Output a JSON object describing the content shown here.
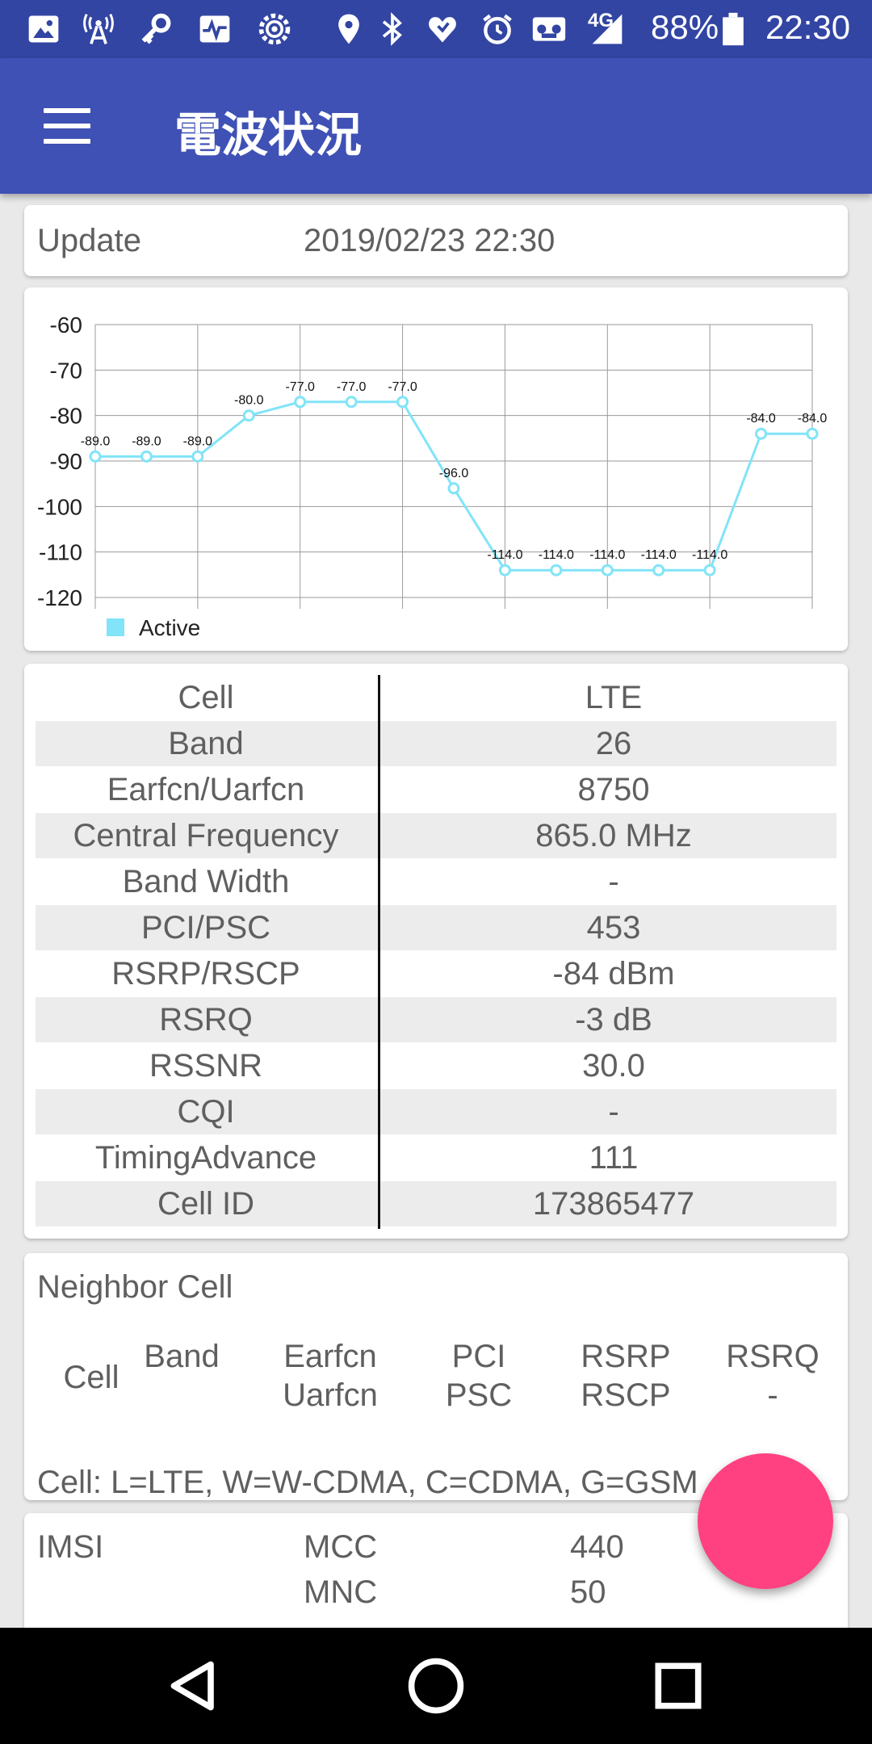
{
  "status_bar": {
    "network": "4G",
    "battery": "88%",
    "time": "22:30",
    "icons": [
      "image-icon",
      "antenna-icon",
      "vpn-key-icon",
      "pulse-icon",
      "settings-gear-icon",
      "location-icon",
      "bluetooth-icon",
      "heart-shield-icon",
      "alarm-icon",
      "voicemail-icon",
      "signal-icon",
      "battery-icon"
    ]
  },
  "app_bar": {
    "title": "電波状況"
  },
  "update": {
    "label": "Update",
    "value": "2019/02/23 22:30"
  },
  "chart_data": {
    "type": "line",
    "y_ticks": [
      "-60",
      "-70",
      "-80",
      "-90",
      "-100",
      "-110",
      "-120"
    ],
    "ylim": [
      -120,
      -60
    ],
    "x": [
      0,
      1,
      2,
      3,
      4,
      5,
      6,
      7,
      8,
      9,
      10,
      11,
      12,
      13,
      14
    ],
    "series": [
      {
        "name": "Active",
        "color": "#81e4f8",
        "values": [
          -89.0,
          -89.0,
          -89.0,
          -80.0,
          -77.0,
          -77.0,
          -77.0,
          -96.0,
          -114.0,
          -114.0,
          -114.0,
          -114.0,
          -114.0,
          -84.0,
          -84.0
        ],
        "labels": [
          "-89.0",
          "-89.0",
          "-89.0",
          "-80.0",
          "-77.0",
          "-77.0",
          "-77.0",
          "-96.0",
          "-114.0",
          "-114.0",
          "-114.0",
          "-114.0",
          "-114.0",
          "-84.0",
          "-84.0"
        ]
      }
    ],
    "grid": true,
    "legend": "bottom-left"
  },
  "cell_info": {
    "rows": [
      {
        "key": "Cell",
        "value": "LTE"
      },
      {
        "key": "Band",
        "value": "26"
      },
      {
        "key": "Earfcn/Uarfcn",
        "value": "8750"
      },
      {
        "key": "Central Frequency",
        "value": "865.0 MHz"
      },
      {
        "key": "Band Width",
        "value": "-"
      },
      {
        "key": "PCI/PSC",
        "value": "453"
      },
      {
        "key": "RSRP/RSCP",
        "value": "-84 dBm"
      },
      {
        "key": "RSRQ",
        "value": "-3 dB"
      },
      {
        "key": "RSSNR",
        "value": "30.0"
      },
      {
        "key": "CQI",
        "value": "-"
      },
      {
        "key": "TimingAdvance",
        "value": "111"
      },
      {
        "key": "Cell ID",
        "value": "173865477"
      }
    ]
  },
  "neighbor": {
    "title": "Neighbor Cell",
    "col_cell": "Cell",
    "col_band": "Band",
    "col_earfcn_1": "Earfcn",
    "col_earfcn_2": "Uarfcn",
    "col_pci_1": "PCI",
    "col_pci_2": "PSC",
    "col_rsrp_1": "RSRP",
    "col_rsrp_2": "RSCP",
    "col_rsrq_1": "RSRQ",
    "col_rsrq_2": "-",
    "legend": "Cell: L=LTE, W=W-CDMA, C=CDMA, G=GSM"
  },
  "imsi": {
    "label": "IMSI",
    "mcc_label": "MCC",
    "mcc_value": "440",
    "mnc_label": "MNC",
    "mnc_value": "50"
  },
  "nav_bar": {
    "buttons": [
      "back-icon",
      "home-icon",
      "recents-icon"
    ]
  },
  "colors": {
    "status_bar": "#3245a3",
    "app_bar": "#3f51b5",
    "fab": "#ff4081",
    "series": "#81e4f8"
  }
}
